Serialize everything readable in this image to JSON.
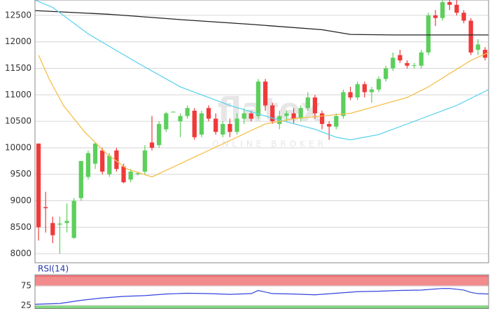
{
  "chart_data": [
    {
      "type": "candlestick",
      "ylim": [
        7830,
        12790
      ],
      "yticks": [
        12500,
        12000,
        11500,
        11000,
        10500,
        10000,
        9500,
        9000,
        8500,
        8000
      ],
      "xlim": [
        -0.5,
        63.5
      ],
      "grid": true,
      "up_color": "#5ccf5c",
      "down_color": "#f03a3a",
      "watermark": [
        "flatex",
        "ONLINE BROKER"
      ],
      "open": [
        10080,
        8880,
        8580,
        8550,
        8580,
        8300,
        9050,
        9450,
        9700,
        9950,
        9500,
        9950,
        9650,
        9400,
        9500,
        9550,
        10100,
        10050,
        10350,
        10680,
        10500,
        10600,
        10700,
        10250,
        10750,
        10550,
        10250,
        10450,
        10300,
        10550,
        10650,
        10600,
        11250,
        10800,
        10450,
        10600,
        10650,
        10550,
        10750,
        10950,
        10650,
        10450,
        10400,
        10600,
        11050,
        10950,
        11200,
        11050,
        11100,
        11300,
        11500,
        11750,
        11600,
        11550,
        11550,
        11800,
        12500,
        12450,
        12750,
        12700,
        12550,
        12400,
        11850,
        11850
      ],
      "high": [
        10080,
        9170,
        8700,
        8700,
        8950,
        9050,
        9750,
        9950,
        10100,
        10000,
        9900,
        10000,
        9700,
        9600,
        9550,
        10050,
        10600,
        10500,
        10680,
        10690,
        10650,
        10800,
        10750,
        10700,
        10800,
        10650,
        10500,
        10550,
        10650,
        10750,
        10700,
        11300,
        11300,
        10850,
        10700,
        10700,
        10750,
        10800,
        11050,
        11000,
        10700,
        10500,
        10650,
        11100,
        11150,
        11250,
        11250,
        11150,
        11350,
        11550,
        11800,
        11850,
        11650,
        11600,
        11850,
        12550,
        12600,
        12800,
        12800,
        12800,
        12600,
        12450,
        12050,
        11900
      ],
      "low": [
        8250,
        8400,
        8200,
        8000,
        8400,
        8280,
        9000,
        9400,
        9600,
        9500,
        9450,
        9550,
        9330,
        9350,
        9480,
        9500,
        9950,
        10000,
        10300,
        10670,
        10200,
        10550,
        10150,
        10200,
        10500,
        10250,
        10200,
        10200,
        10250,
        10450,
        10500,
        10550,
        10700,
        10450,
        10350,
        10500,
        10450,
        10500,
        10700,
        10550,
        10350,
        10150,
        10350,
        10550,
        10900,
        10900,
        10950,
        10850,
        11050,
        11250,
        11450,
        11600,
        11500,
        11500,
        11500,
        11750,
        12300,
        12400,
        12600,
        12500,
        12350,
        11750,
        11750,
        11650
      ],
      "close": [
        8500,
        8860,
        8350,
        8570,
        8620,
        9000,
        9750,
        9900,
        10080,
        9550,
        9850,
        9600,
        9350,
        9550,
        9520,
        9950,
        10000,
        10450,
        10650,
        10680,
        10600,
        10750,
        10200,
        10650,
        10550,
        10300,
        10450,
        10300,
        10550,
        10650,
        10550,
        11250,
        10800,
        10500,
        10600,
        10650,
        10550,
        10750,
        10950,
        10650,
        10450,
        10400,
        10600,
        11050,
        10950,
        11200,
        11050,
        11100,
        11300,
        11500,
        11700,
        11650,
        11550,
        11560,
        11800,
        12500,
        12450,
        12750,
        12700,
        12550,
        12400,
        11800,
        11950,
        11700
      ],
      "lines": [
        {
          "color": "#222222",
          "x": [
            -0.5,
            10,
            20,
            30,
            40,
            44,
            50,
            63.5
          ],
          "values": [
            12590,
            12520,
            12420,
            12330,
            12230,
            12140,
            12130,
            12130
          ]
        },
        {
          "color": "#5fd4ef",
          "x": [
            -0.5,
            2,
            7,
            14,
            20,
            27,
            33,
            39,
            42,
            44,
            48,
            51,
            55,
            59,
            63.5
          ],
          "values": [
            12790,
            12650,
            12150,
            11600,
            11150,
            10800,
            10560,
            10350,
            10200,
            10150,
            10250,
            10400,
            10600,
            10800,
            11100
          ]
        },
        {
          "color": "#f5c04a",
          "x": [
            0,
            1.5,
            3.5,
            6.5,
            9.5,
            12.5,
            16,
            20,
            24,
            28,
            32,
            36,
            44,
            48,
            52,
            55,
            58,
            61,
            63.5
          ],
          "values": [
            11750,
            11300,
            10800,
            10300,
            9900,
            9600,
            9450,
            9700,
            9950,
            10200,
            10450,
            10550,
            10650,
            10800,
            10950,
            11150,
            11400,
            11650,
            11800
          ]
        }
      ]
    },
    {
      "type": "line",
      "title": "RSI(14)",
      "ylim": [
        16,
        103
      ],
      "yticks": [
        75,
        25
      ],
      "xlim": [
        -0.5,
        63.5
      ],
      "bands": [
        {
          "from": 75,
          "to": 100,
          "color": "#f28b8b"
        },
        {
          "from": 0,
          "to": 25,
          "color": "#7fd67f"
        }
      ],
      "series": [
        {
          "color": "#3344dd",
          "x": [
            -0.5,
            3,
            6,
            9,
            12,
            15,
            18,
            21,
            24,
            27,
            30,
            31,
            33,
            36,
            39,
            42,
            45,
            48,
            51,
            54,
            57,
            58,
            60,
            61,
            62,
            63.5
          ],
          "values": [
            28,
            30,
            38,
            44,
            48,
            50,
            54,
            56,
            55,
            53,
            55,
            63,
            55,
            54,
            52,
            56,
            60,
            61,
            63,
            64,
            68,
            68,
            64,
            58,
            55,
            54
          ]
        }
      ]
    }
  ]
}
